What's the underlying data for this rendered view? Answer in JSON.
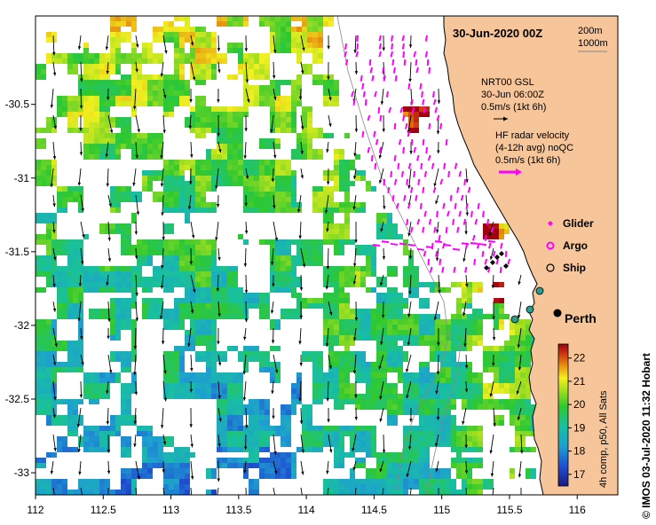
{
  "map": {
    "title": "30-Jun-2020 00Z",
    "contours": [
      "200m",
      "1000m"
    ],
    "x_axis": {
      "ticks": [
        "112",
        "112.5",
        "113",
        "113.5",
        "114",
        "114.5",
        "115",
        "115.5",
        "116"
      ]
    },
    "y_axis": {
      "ticks": [
        "-30.5",
        "-31",
        "-31.5",
        "-32",
        "-32.5",
        "-33"
      ]
    },
    "lon_range": [
      112,
      116.3
    ],
    "lat_range": [
      -33.15,
      -29.9
    ]
  },
  "legend": {
    "current_title": "NRT00 GSL",
    "current_time": "30-Jun 06:00Z",
    "current_scale": "0.5m/s (1kt 6h)",
    "radar_title": "HF radar velocity",
    "radar_subtitle": "(4-12h avg) noQC",
    "radar_scale": "0.5m/s (1kt 6h)",
    "glider_label": "Glider",
    "argo_label": "Argo",
    "ship_label": "Ship"
  },
  "places": {
    "city": "Perth"
  },
  "colorbar": {
    "title": "4h comp, p50, All Sats",
    "ticks": [
      "17",
      "18",
      "19",
      "20",
      "21",
      "22"
    ],
    "range": [
      16.5,
      22.6
    ]
  },
  "credit": "© IMOS 03-Jul-2020 11:32 Hobart",
  "colors": {
    "land": "#f6c59a",
    "radar_arrow": "#ff00ff",
    "glider": "#ff00ff",
    "argo": "#ff00ff",
    "ship": "#000000"
  }
}
